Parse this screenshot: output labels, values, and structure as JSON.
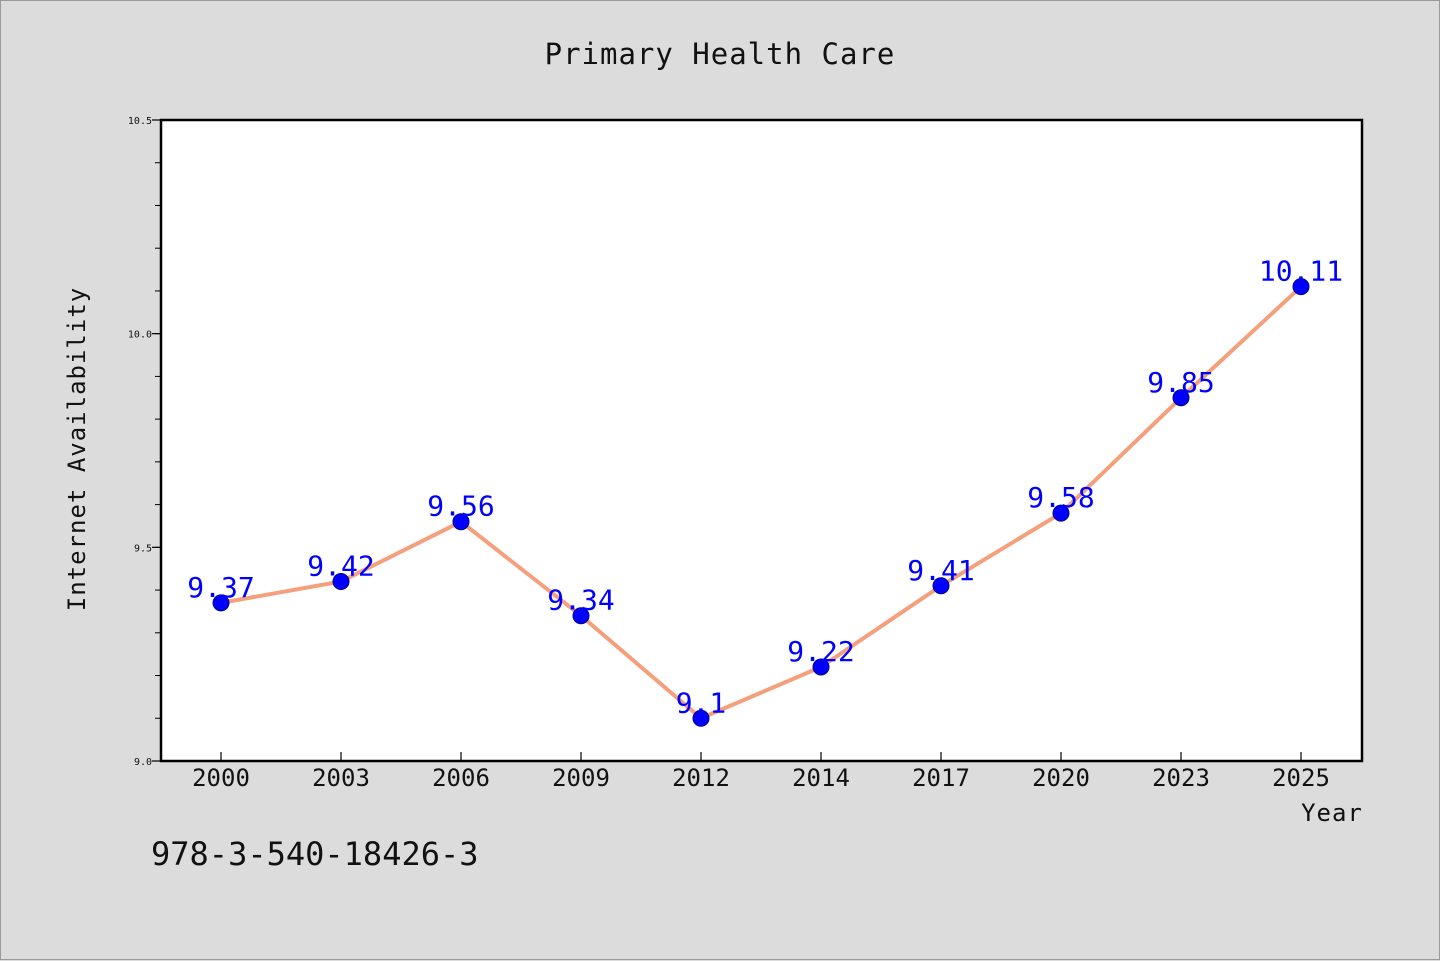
{
  "chart_data": {
    "type": "line",
    "title": "Primary Health Care",
    "xlabel": "Year",
    "ylabel": "Internet Availability",
    "categories": [
      "2000",
      "2003",
      "2006",
      "2009",
      "2012",
      "2014",
      "2017",
      "2020",
      "2023",
      "2025"
    ],
    "series": [
      {
        "values": [
          9.37,
          9.42,
          9.56,
          9.34,
          9.1,
          9.22,
          9.41,
          9.58,
          9.85,
          10.11
        ],
        "labels": [
          "9.37",
          "9.42",
          "9.56",
          "9.34",
          "9.1",
          "9.22",
          "9.41",
          "9.58",
          "9.85",
          "10.11"
        ],
        "line_color": "#f4a07c",
        "marker_color": "#0000ff",
        "label_color": "#0000ff"
      }
    ],
    "ylim": [
      9.0,
      10.5
    ],
    "yticks": [
      "9.0",
      "9.5",
      "10.0",
      "10.5"
    ],
    "grid": false,
    "legend": "none"
  },
  "footer": {
    "isbn": "978-3-540-18426-3"
  },
  "colors": {
    "background": "#dcdcdc",
    "plot_area": "#ffffff"
  }
}
